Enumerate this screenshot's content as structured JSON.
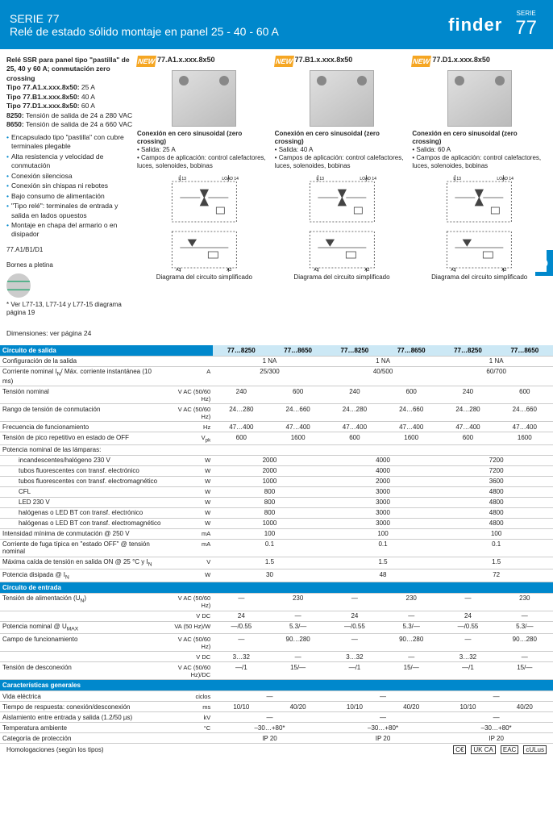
{
  "header": {
    "series": "SERIE 77",
    "title": "Relé de estado sólido montaje en panel 25 - 40 - 60 A",
    "logo": "finder",
    "right_serie": "SERIE",
    "right_num": "77",
    "side_tab": "D"
  },
  "left": {
    "title": "Relé SSR para panel tipo \"pastilla\" de 25, 40 y 60 A; conmutación zero crossing",
    "types": [
      {
        "label": "Tipo 77.A1.x.xxx.8x50:",
        "val": " 25 A"
      },
      {
        "label": "Tipo 77.B1.x.xxx.8x50:",
        "val": " 40 A"
      },
      {
        "label": "Tipo 77.D1.x.xxx.8x50:",
        "val": " 60 A"
      },
      {
        "label": "8250:",
        "val": " Tensión de salida de 24 a 280 VAC"
      },
      {
        "label": "8650:",
        "val": " Tensión de salida de 24 a 660 VAC"
      }
    ],
    "bullets": [
      "Encapsulado tipo \"pastilla\" con cubre terminales plegable",
      "Alta resistencia y velocidad de conmutación",
      "Conexión silenciosa",
      "Conexión sin chispas ni rebotes",
      "Bajo consumo de alimentación",
      "\"Tipo relé\": terminales de entrada y salida en lados opuestos",
      "Montaje en chapa del armario o en disipador"
    ],
    "terminal": "77.A1/B1/D1",
    "terminal2": "Bornes a pletina",
    "refnote": "* Ver L77-13,  L77-14 y L77-15 diagrama página 19",
    "dimnote": "Dimensiones: ver página 24"
  },
  "products": [
    {
      "new": "NEW",
      "code": "77.A1.x.xxx.8x50",
      "desc_title": "Conexión en cero sinusoidal (zero crossing)",
      "bullet1": "• Salida: 25 A",
      "bullet2": "• Campos de aplicación: control calefactores, luces, solenoides, bobinas",
      "caption": "Diagrama del circuito simplificado"
    },
    {
      "new": "NEW",
      "code": "77.B1.x.xxx.8x50",
      "desc_title": "Conexión en cero sinusoidal (zero crossing)",
      "bullet1": "• Salida: 40 A",
      "bullet2": "• Campos de aplicación: control calefactores, luces, solenoides, bobinas",
      "caption": "Diagrama del circuito simplificado"
    },
    {
      "new": "NEW",
      "code": "77.D1.x.xxx.8x50",
      "desc_title": "Conexión en cero sinusoidal (zero crossing)",
      "bullet1": "• Salida: 60 A",
      "bullet2": "• Campos de aplicación: control calefactores, luces, solenoides, bobinas",
      "caption": "Diagrama del circuito simplificado"
    }
  ],
  "spec": {
    "sections": {
      "out": "Circuito de salida",
      "in": "Circuito de entrada",
      "gen": "Características generales"
    },
    "subhead": [
      "77…8250",
      "77…8650",
      "77…8250",
      "77…8650",
      "77…8250",
      "77…8650"
    ],
    "rows": [
      {
        "l": "Configuración de la salida",
        "u": "",
        "v": [
          "1 NA",
          "",
          "1 NA",
          "",
          "1 NA",
          ""
        ],
        "merge": [
          2,
          2,
          2
        ]
      },
      {
        "l": "Corriente nominal I<sub>N</sub>/ Máx. corriente instantánea (10 ms)",
        "u": "A",
        "v": [
          "25/300",
          "",
          "40/500",
          "",
          "60/700",
          ""
        ],
        "merge": [
          2,
          2,
          2
        ]
      },
      {
        "l": "Tensión nominal",
        "u": "V AC (50/60 Hz)",
        "v": [
          "240",
          "600",
          "240",
          "600",
          "240",
          "600"
        ]
      },
      {
        "l": "Rango de tensión de conmutación",
        "u": "V AC (50/60 Hz)",
        "v": [
          "24…280",
          "24…660",
          "24…280",
          "24…660",
          "24…280",
          "24…660"
        ]
      },
      {
        "l": "Frecuencia de funcionamiento",
        "u": "Hz",
        "v": [
          "47…400",
          "47…400",
          "47…400",
          "47…400",
          "47…400",
          "47…400"
        ]
      },
      {
        "l": "Tensión de pico repetitivo en estado de OFF",
        "u": "V<sub>pk</sub>",
        "v": [
          "600",
          "1600",
          "600",
          "1600",
          "600",
          "1600"
        ]
      },
      {
        "l": "Potencia nominal de las lámparas:",
        "u": "",
        "v": [
          "",
          "",
          "",
          "",
          "",
          ""
        ],
        "noborder": true
      },
      {
        "l": "incandescentes/halógeno 230 V",
        "u": "W",
        "v": [
          "2000",
          "",
          "4000",
          "",
          "7200",
          ""
        ],
        "merge": [
          2,
          2,
          2
        ],
        "indent": true
      },
      {
        "l": "tubos fluorescentes con transf. electrónico",
        "u": "W",
        "v": [
          "2000",
          "",
          "4000",
          "",
          "7200",
          ""
        ],
        "merge": [
          2,
          2,
          2
        ],
        "indent": true
      },
      {
        "l": "tubos fluorescentes con transf. electromagnético",
        "u": "W",
        "v": [
          "1000",
          "",
          "2000",
          "",
          "3600",
          ""
        ],
        "merge": [
          2,
          2,
          2
        ],
        "indent": true
      },
      {
        "l": "CFL",
        "u": "W",
        "v": [
          "800",
          "",
          "3000",
          "",
          "4800",
          ""
        ],
        "merge": [
          2,
          2,
          2
        ],
        "indent": true
      },
      {
        "l": "LED 230 V",
        "u": "W",
        "v": [
          "800",
          "",
          "3000",
          "",
          "4800",
          ""
        ],
        "merge": [
          2,
          2,
          2
        ],
        "indent": true
      },
      {
        "l": "halógenas o LED BT con transf. electrónico",
        "u": "W",
        "v": [
          "800",
          "",
          "3000",
          "",
          "4800",
          ""
        ],
        "merge": [
          2,
          2,
          2
        ],
        "indent": true
      },
      {
        "l": "halógenas o LED BT con transf. electromagnético",
        "u": "W",
        "v": [
          "1000",
          "",
          "3000",
          "",
          "4800",
          ""
        ],
        "merge": [
          2,
          2,
          2
        ],
        "indent": true
      },
      {
        "l": "Intensidad mínima de conmutación @ 250 V",
        "u": "mA",
        "v": [
          "100",
          "",
          "100",
          "",
          "100",
          ""
        ],
        "merge": [
          2,
          2,
          2
        ]
      },
      {
        "l": "Corriente de fuga típica en \"estado OFF\" @ tensión nominal",
        "u": "mA",
        "v": [
          "0.1",
          "",
          "0.1",
          "",
          "0.1",
          ""
        ],
        "merge": [
          2,
          2,
          2
        ]
      },
      {
        "l": "Máxima caída de tensión en salida ON @ 25 °C y I<sub>N</sub>",
        "u": "V",
        "v": [
          "1.5",
          "",
          "1.5",
          "",
          "1.5",
          ""
        ],
        "merge": [
          2,
          2,
          2
        ]
      },
      {
        "l": "Potencia disipada @ I<sub>N</sub>",
        "u": "W",
        "v": [
          "30",
          "",
          "48",
          "",
          "72",
          ""
        ],
        "merge": [
          2,
          2,
          2
        ]
      },
      {
        "section": "in"
      },
      {
        "l": "Tensión de alimentación (U<sub>N</sub>)",
        "u": "V AC (50/60 Hz)",
        "v": [
          "—",
          "230",
          "—",
          "230",
          "—",
          "230"
        ]
      },
      {
        "l": "",
        "u": "V DC",
        "v": [
          "24",
          "—",
          "24",
          "—",
          "24",
          "—"
        ]
      },
      {
        "l": "Potencia nominal @ U<sub>MAX</sub>",
        "u": "VA (50 Hz)/W",
        "v": [
          "—/0.55",
          "5.3/—",
          "—/0.55",
          "5.3/—",
          "—/0.55",
          "5.3/—"
        ]
      },
      {
        "l": "Campo de funcionamiento",
        "u": "V AC (50/60 Hz)",
        "v": [
          "—",
          "90…280",
          "—",
          "90…280",
          "—",
          "90…280"
        ]
      },
      {
        "l": "",
        "u": "V DC",
        "v": [
          "3…32",
          "—",
          "3…32",
          "—",
          "3…32",
          "—"
        ]
      },
      {
        "l": "Tensión de desconexión",
        "u": "V AC (50/60 Hz)/DC",
        "v": [
          "—/1",
          "15/—",
          "—/1",
          "15/—",
          "—/1",
          "15/—"
        ]
      },
      {
        "section": "gen"
      },
      {
        "l": "Vida eléctrica",
        "u": "ciclos",
        "v": [
          "—",
          "",
          "—",
          "",
          "—",
          ""
        ],
        "merge": [
          2,
          2,
          2
        ]
      },
      {
        "l": "Tiempo de respuesta: conexión/desconexión",
        "u": "ms",
        "v": [
          "10/10",
          "40/20",
          "10/10",
          "40/20",
          "10/10",
          "40/20"
        ]
      },
      {
        "l": "Aislamiento entre entrada y salida (1.2/50 µs)",
        "u": "kV",
        "v": [
          "—",
          "",
          "—",
          "",
          "—",
          ""
        ],
        "merge": [
          2,
          2,
          2
        ]
      },
      {
        "l": "Temperatura ambiente",
        "u": "°C",
        "v": [
          "–30…+80*",
          "",
          "–30…+80*",
          "",
          "–30…+80*",
          ""
        ],
        "merge": [
          2,
          2,
          2
        ]
      },
      {
        "l": "Categoría de protección",
        "u": "",
        "v": [
          "IP 20",
          "",
          "IP 20",
          "",
          "IP 20",
          ""
        ],
        "merge": [
          2,
          2,
          2
        ]
      }
    ],
    "homolog_label": "Homologaciones",
    "homolog_sub": " (según los tipos)",
    "certs": [
      "C€",
      "UK CA",
      "EAC",
      "cULus"
    ]
  }
}
